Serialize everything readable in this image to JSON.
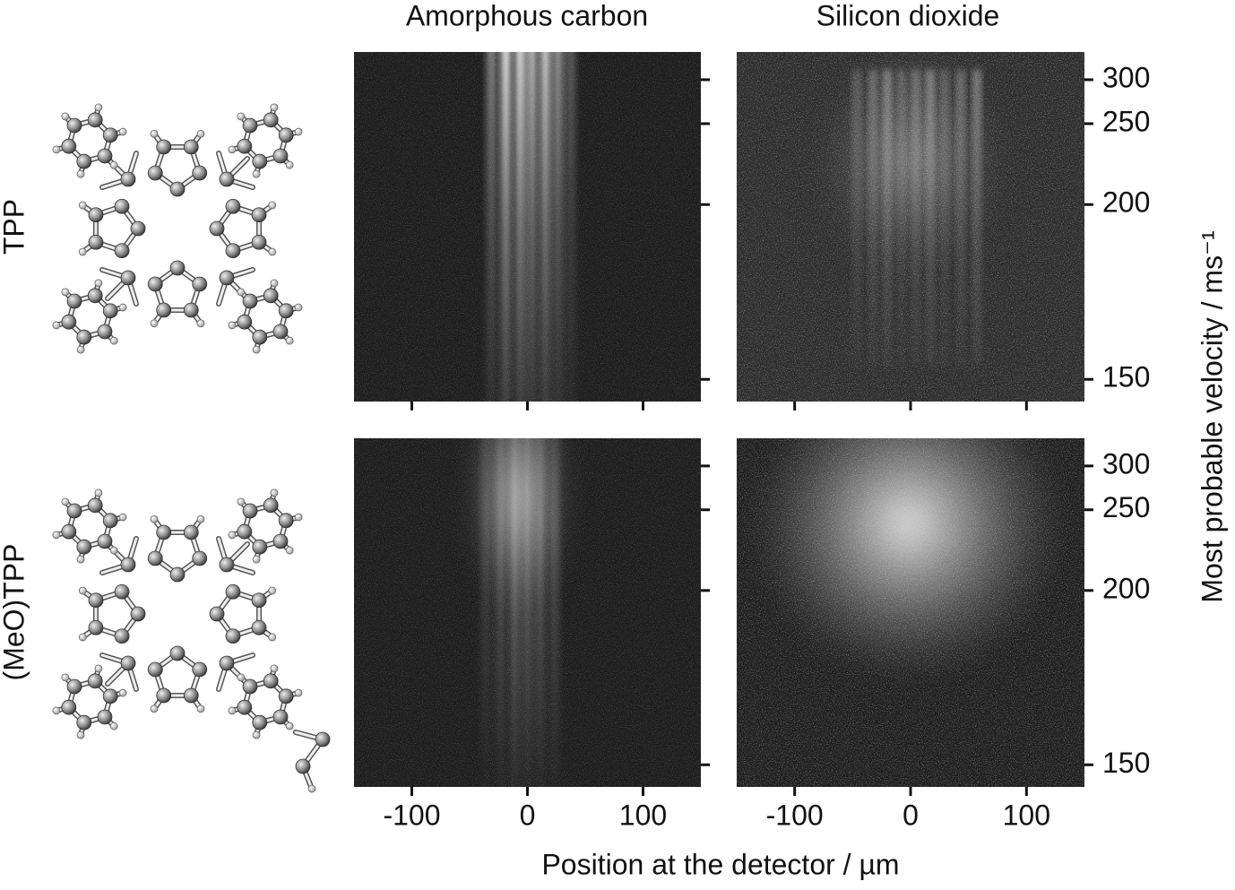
{
  "columns": [
    "Amorphous carbon",
    "Silicon dioxide"
  ],
  "rows": [
    "TPP",
    "(MeO)TPP"
  ],
  "x_axis": {
    "label": "Position at the detector / µm",
    "lim": [
      -150,
      150
    ],
    "ticks": [
      -100,
      0,
      100
    ]
  },
  "y_axis": {
    "label": "Most probable velocity / ms⁻¹",
    "lim": [
      353,
      146
    ],
    "scale": "inverse-square",
    "ticks": [
      150,
      200,
      250,
      300
    ]
  }
}
